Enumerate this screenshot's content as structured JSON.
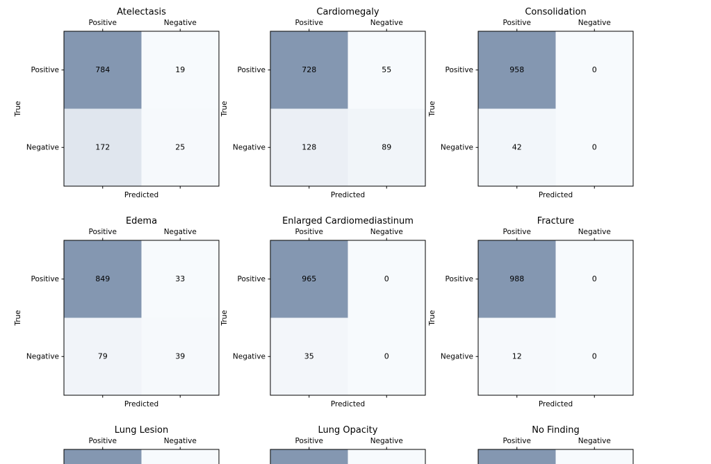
{
  "chart_data": [
    {
      "type": "heatmap",
      "title": "Atelectasis",
      "col_labels": [
        "Positive",
        "Negative"
      ],
      "row_labels": [
        "Positive",
        "Negative"
      ],
      "xlabel": "Predicted",
      "ylabel": "True",
      "values": [
        [
          784,
          19
        ],
        [
          172,
          25
        ]
      ]
    },
    {
      "type": "heatmap",
      "title": "Cardiomegaly",
      "col_labels": [
        "Positive",
        "Negative"
      ],
      "row_labels": [
        "Positive",
        "Negative"
      ],
      "xlabel": "Predicted",
      "ylabel": "True",
      "values": [
        [
          728,
          55
        ],
        [
          128,
          89
        ]
      ]
    },
    {
      "type": "heatmap",
      "title": "Consolidation",
      "col_labels": [
        "Positive",
        "Negative"
      ],
      "row_labels": [
        "Positive",
        "Negative"
      ],
      "xlabel": "Predicted",
      "ylabel": "True",
      "values": [
        [
          958,
          0
        ],
        [
          42,
          0
        ]
      ]
    },
    {
      "type": "heatmap",
      "title": "Edema",
      "col_labels": [
        "Positive",
        "Negative"
      ],
      "row_labels": [
        "Positive",
        "Negative"
      ],
      "xlabel": "Predicted",
      "ylabel": "True",
      "values": [
        [
          849,
          33
        ],
        [
          79,
          39
        ]
      ]
    },
    {
      "type": "heatmap",
      "title": "Enlarged Cardiomediastinum",
      "col_labels": [
        "Positive",
        "Negative"
      ],
      "row_labels": [
        "Positive",
        "Negative"
      ],
      "xlabel": "Predicted",
      "ylabel": "True",
      "values": [
        [
          965,
          0
        ],
        [
          35,
          0
        ]
      ]
    },
    {
      "type": "heatmap",
      "title": "Fracture",
      "col_labels": [
        "Positive",
        "Negative"
      ],
      "row_labels": [
        "Positive",
        "Negative"
      ],
      "xlabel": "Predicted",
      "ylabel": "True",
      "values": [
        [
          988,
          0
        ],
        [
          12,
          0
        ]
      ]
    },
    {
      "type": "heatmap",
      "title": "Lung Lesion",
      "col_labels": [
        "Positive",
        "Negative"
      ],
      "partial": true
    },
    {
      "type": "heatmap",
      "title": "Lung Opacity",
      "col_labels": [
        "Positive",
        "Negative"
      ],
      "partial": true
    },
    {
      "type": "heatmap",
      "title": "No Finding",
      "col_labels": [
        "Positive",
        "Negative"
      ],
      "partial": true
    }
  ],
  "colors": {
    "cell_max": "#8497b1",
    "cell_min": "#f7fafd",
    "frame": "#000000",
    "text": "#000000"
  }
}
